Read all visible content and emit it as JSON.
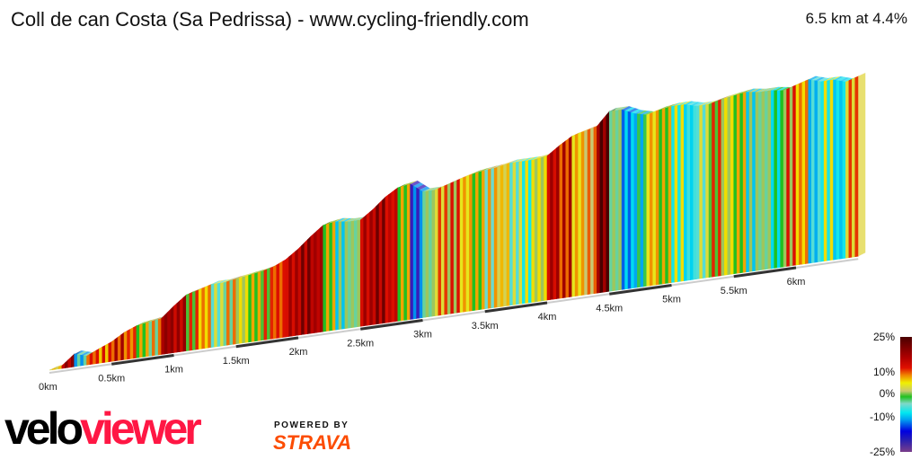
{
  "header": {
    "title": "Coll de can Costa (Sa Pedrissa) - www.cycling-friendly.com",
    "summary": "6.5 km at 4.4%"
  },
  "legend": {
    "labels": [
      "25%",
      "10%",
      "0%",
      "-10%",
      "-25%"
    ]
  },
  "branding": {
    "logo_part1": "velo",
    "logo_part2": "viewer",
    "powered_by": "POWERED BY",
    "strava": "STRAVA"
  },
  "chart_data": {
    "type": "area",
    "title": "Coll de can Costa (Sa Pedrissa) - www.cycling-friendly.com",
    "xlabel": "",
    "ylabel": "",
    "x_ticks": [
      "0km",
      "0.5km",
      "1km",
      "1.5km",
      "2km",
      "2.5km",
      "3km",
      "3.5km",
      "4km",
      "4.5km",
      "5km",
      "5.5km",
      "6km"
    ],
    "xlim": [
      0,
      6.5
    ],
    "distance_km": [
      0,
      0.1,
      0.2,
      0.3,
      0.4,
      0.5,
      0.6,
      0.7,
      0.8,
      0.9,
      1.0,
      1.1,
      1.2,
      1.3,
      1.4,
      1.5,
      1.6,
      1.7,
      1.8,
      1.9,
      2.0,
      2.1,
      2.2,
      2.3,
      2.4,
      2.5,
      2.6,
      2.7,
      2.8,
      2.9,
      3.0,
      3.1,
      3.2,
      3.3,
      3.4,
      3.5,
      3.6,
      3.7,
      3.8,
      3.9,
      4.0,
      4.1,
      4.2,
      4.3,
      4.4,
      4.5,
      4.6,
      4.7,
      4.8,
      4.9,
      5.0,
      5.1,
      5.2,
      5.3,
      5.4,
      5.5,
      5.6,
      5.7,
      5.8,
      5.9,
      6.0,
      6.1,
      6.2,
      6.3,
      6.4,
      6.5
    ],
    "elevation_gain_m": [
      0,
      4,
      20,
      14,
      23,
      31,
      43,
      51,
      54,
      57,
      74,
      89,
      94,
      100,
      100,
      103,
      106,
      109,
      114,
      123,
      137,
      154,
      169,
      172,
      169,
      169,
      183,
      200,
      212,
      215,
      200,
      200,
      206,
      212,
      217,
      220,
      222,
      226,
      226,
      226,
      229,
      243,
      255,
      260,
      265,
      286,
      286,
      277,
      272,
      277,
      280,
      280,
      275,
      275,
      280,
      283,
      286,
      283,
      283,
      280,
      286,
      292,
      286,
      286,
      280,
      286
    ],
    "gradient_scale": {
      "min": -25,
      "max": 25,
      "ticks": [
        25,
        10,
        0,
        -10,
        -25
      ]
    },
    "grid": false,
    "legend": "right"
  }
}
